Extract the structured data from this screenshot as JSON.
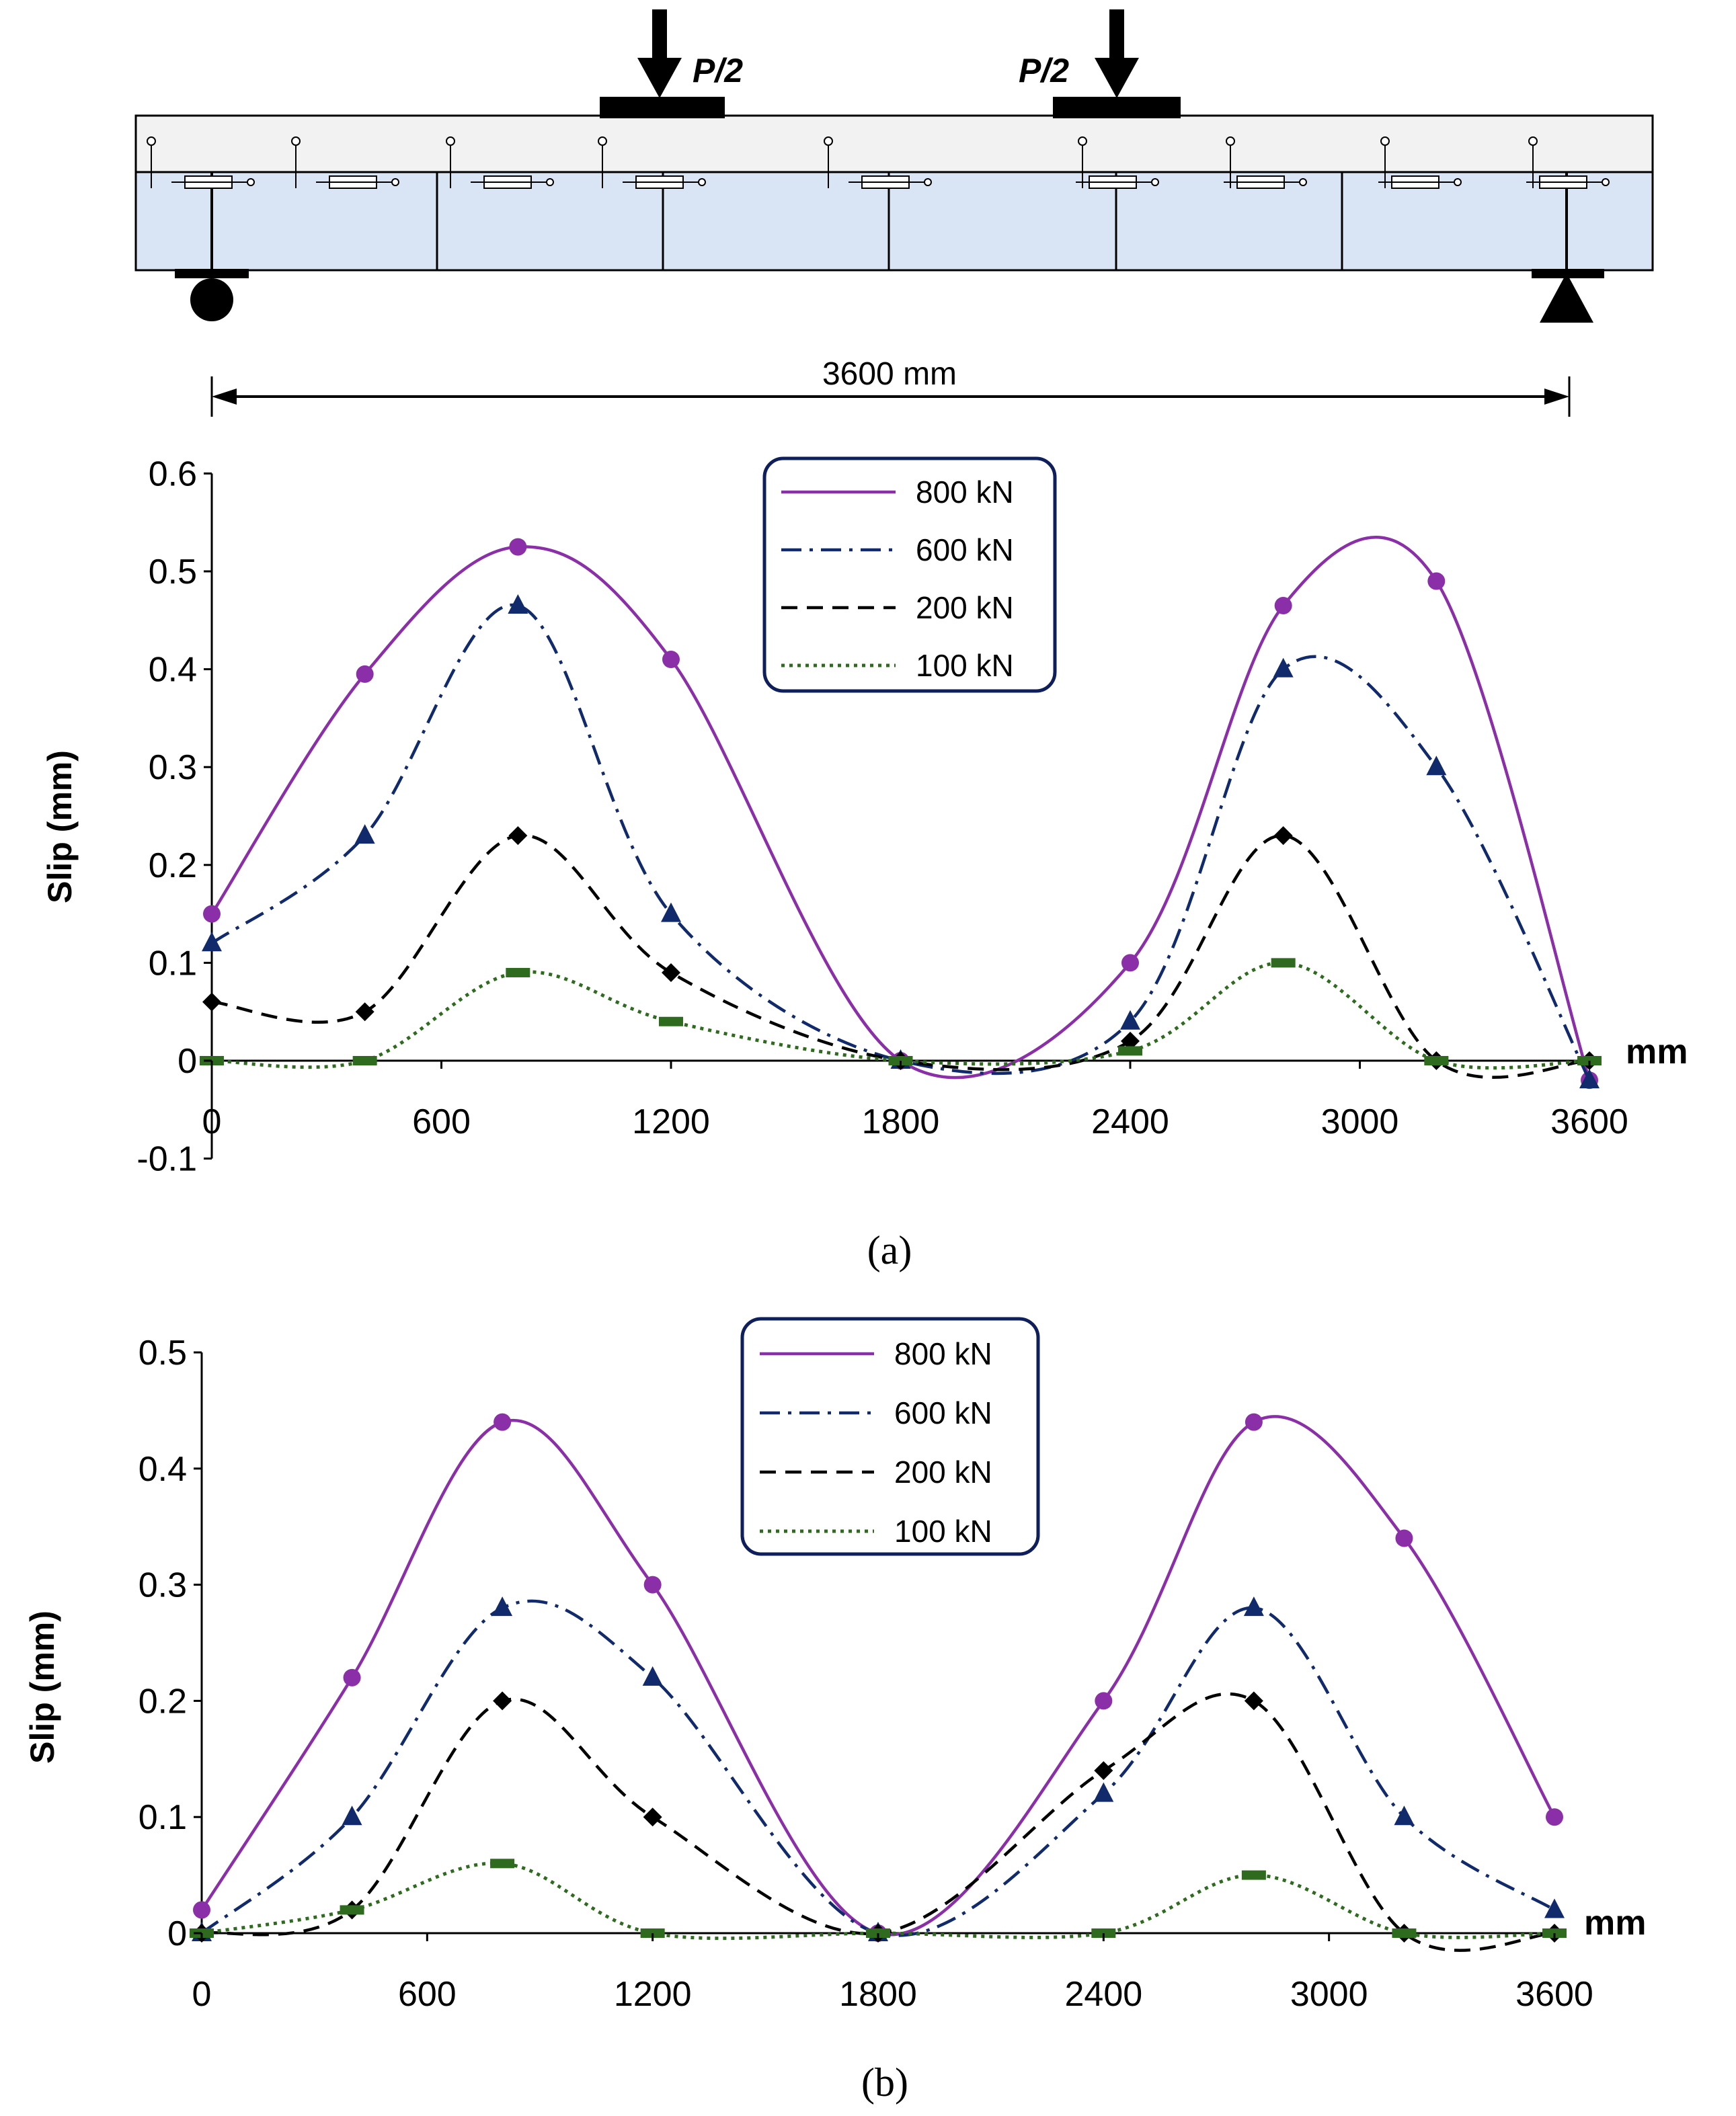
{
  "beam_diagram": {
    "load_labels": [
      "P/2",
      "P/2"
    ],
    "span_label": "3600 mm",
    "colors": {
      "slab": "#f2f2f2",
      "beam": "#d9e4f4",
      "outline": "#000000"
    }
  },
  "legend_labels": [
    "800 kN",
    "600 kN",
    "200 kN",
    "100 kN"
  ],
  "chart_data": [
    {
      "type": "line",
      "panel_label": "(a)",
      "title": "",
      "xlabel": "mm",
      "ylabel": "Slip (mm)",
      "xlim": [
        0,
        3600
      ],
      "ylim": [
        -0.1,
        0.6
      ],
      "x_ticks": [
        "0",
        "600",
        "1200",
        "1800",
        "2400",
        "3000",
        "3600"
      ],
      "y_ticks": [
        "0.6",
        "0.5",
        "0.4",
        "0.3",
        "0.2",
        "0.1",
        "0",
        "-0.1"
      ],
      "legend_position": "top-center",
      "series": [
        {
          "name": "800 kN",
          "color": "#8b2fa8",
          "dash": "solid",
          "marker": "circle",
          "x": [
            0,
            400,
            800,
            1200,
            1800,
            2400,
            2800,
            3200,
            3600
          ],
          "y": [
            0.15,
            0.395,
            0.525,
            0.41,
            0,
            0.1,
            0.465,
            0.49,
            -0.02
          ]
        },
        {
          "name": "600 kN",
          "color": "#102a6b",
          "dash": "dashdot",
          "marker": "triangle",
          "x": [
            0,
            400,
            800,
            1200,
            1800,
            2400,
            2800,
            3200,
            3600
          ],
          "y": [
            0.12,
            0.23,
            0.465,
            0.15,
            0,
            0.04,
            0.4,
            0.3,
            -0.02
          ]
        },
        {
          "name": "200 kN",
          "color": "#000000",
          "dash": "dashed",
          "marker": "diamond",
          "x": [
            0,
            400,
            800,
            1200,
            1800,
            2400,
            2800,
            3200,
            3600
          ],
          "y": [
            0.06,
            0.05,
            0.23,
            0.09,
            0,
            0.02,
            0.23,
            0,
            0
          ]
        },
        {
          "name": "100 kN",
          "color": "#2e6b1f",
          "dash": "dotted",
          "marker": "bar",
          "x": [
            0,
            400,
            800,
            1200,
            1800,
            2400,
            2800,
            3200,
            3600
          ],
          "y": [
            0,
            0,
            0.09,
            0.04,
            0,
            0.01,
            0.1,
            0,
            0
          ]
        }
      ]
    },
    {
      "type": "line",
      "panel_label": "(b)",
      "title": "",
      "xlabel": "mm",
      "ylabel": "Slip (mm)",
      "xlim": [
        0,
        3600
      ],
      "ylim": [
        0,
        0.5
      ],
      "x_ticks": [
        "0",
        "600",
        "1200",
        "1800",
        "2400",
        "3000",
        "3600"
      ],
      "y_ticks": [
        "0.5",
        "0.4",
        "0.3",
        "0.2",
        "0.1",
        "0"
      ],
      "legend_position": "top-center",
      "series": [
        {
          "name": "800 kN",
          "color": "#8b2fa8",
          "dash": "solid",
          "marker": "circle",
          "x": [
            0,
            400,
            800,
            1200,
            1800,
            2400,
            2800,
            3200,
            3600
          ],
          "y": [
            0.02,
            0.22,
            0.44,
            0.3,
            0,
            0.2,
            0.44,
            0.34,
            0.1
          ]
        },
        {
          "name": "600 kN",
          "color": "#102a6b",
          "dash": "dashdot",
          "marker": "triangle",
          "x": [
            0,
            400,
            800,
            1200,
            1800,
            2400,
            2800,
            3200,
            3600
          ],
          "y": [
            0,
            0.1,
            0.28,
            0.22,
            0,
            0.12,
            0.28,
            0.1,
            0.02
          ]
        },
        {
          "name": "200 kN",
          "color": "#000000",
          "dash": "dashed",
          "marker": "diamond",
          "x": [
            0,
            400,
            800,
            1200,
            1800,
            2400,
            2800,
            3200,
            3600
          ],
          "y": [
            0,
            0.02,
            0.2,
            0.1,
            0,
            0.14,
            0.2,
            0,
            0
          ]
        },
        {
          "name": "100 kN",
          "color": "#2e6b1f",
          "dash": "dotted",
          "marker": "bar",
          "x": [
            0,
            400,
            800,
            1200,
            1800,
            2400,
            2800,
            3200,
            3600
          ],
          "y": [
            0,
            0.02,
            0.06,
            0,
            0,
            0,
            0.05,
            0,
            0
          ]
        }
      ]
    }
  ]
}
